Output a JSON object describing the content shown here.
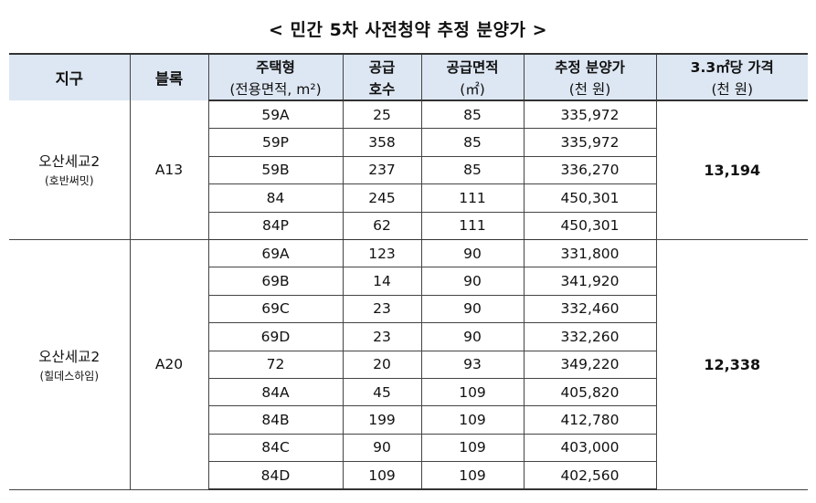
{
  "title": "< 민간 5차 사전청약 추정 분양가 >",
  "headers": {
    "district": "지구",
    "block": "블록",
    "type_l1": "주택형",
    "type_l2": "(전용면적, m²)",
    "supply_l1": "공급",
    "supply_l2": "호수",
    "area_l1": "공급면적",
    "area_l2": "(㎡)",
    "price_l1": "추정 분양가",
    "price_l2": "(천 원)",
    "py_l1": "3.3㎡당 가격",
    "py_l2": "(천 원)"
  },
  "groups": [
    {
      "district": "오산세교2",
      "builder": "(호반써밋)",
      "block": "A13",
      "price_per_3_3": "13,194",
      "rows": [
        {
          "type": "59A",
          "units": "25",
          "area": "85",
          "price": "335,972"
        },
        {
          "type": "59P",
          "units": "358",
          "area": "85",
          "price": "335,972"
        },
        {
          "type": "59B",
          "units": "237",
          "area": "85",
          "price": "336,270"
        },
        {
          "type": "84",
          "units": "245",
          "area": "111",
          "price": "450,301"
        },
        {
          "type": "84P",
          "units": "62",
          "area": "111",
          "price": "450,301"
        }
      ]
    },
    {
      "district": "오산세교2",
      "builder": "(힐데스하임)",
      "block": "A20",
      "price_per_3_3": "12,338",
      "rows": [
        {
          "type": "69A",
          "units": "123",
          "area": "90",
          "price": "331,800"
        },
        {
          "type": "69B",
          "units": "14",
          "area": "90",
          "price": "341,920"
        },
        {
          "type": "69C",
          "units": "23",
          "area": "90",
          "price": "332,460"
        },
        {
          "type": "69D",
          "units": "23",
          "area": "90",
          "price": "332,260"
        },
        {
          "type": "72",
          "units": "20",
          "area": "93",
          "price": "349,220"
        },
        {
          "type": "84A",
          "units": "45",
          "area": "109",
          "price": "405,820"
        },
        {
          "type": "84B",
          "units": "199",
          "area": "109",
          "price": "412,780"
        },
        {
          "type": "84C",
          "units": "90",
          "area": "109",
          "price": "403,000"
        },
        {
          "type": "84D",
          "units": "109",
          "area": "109",
          "price": "402,560"
        }
      ]
    }
  ]
}
